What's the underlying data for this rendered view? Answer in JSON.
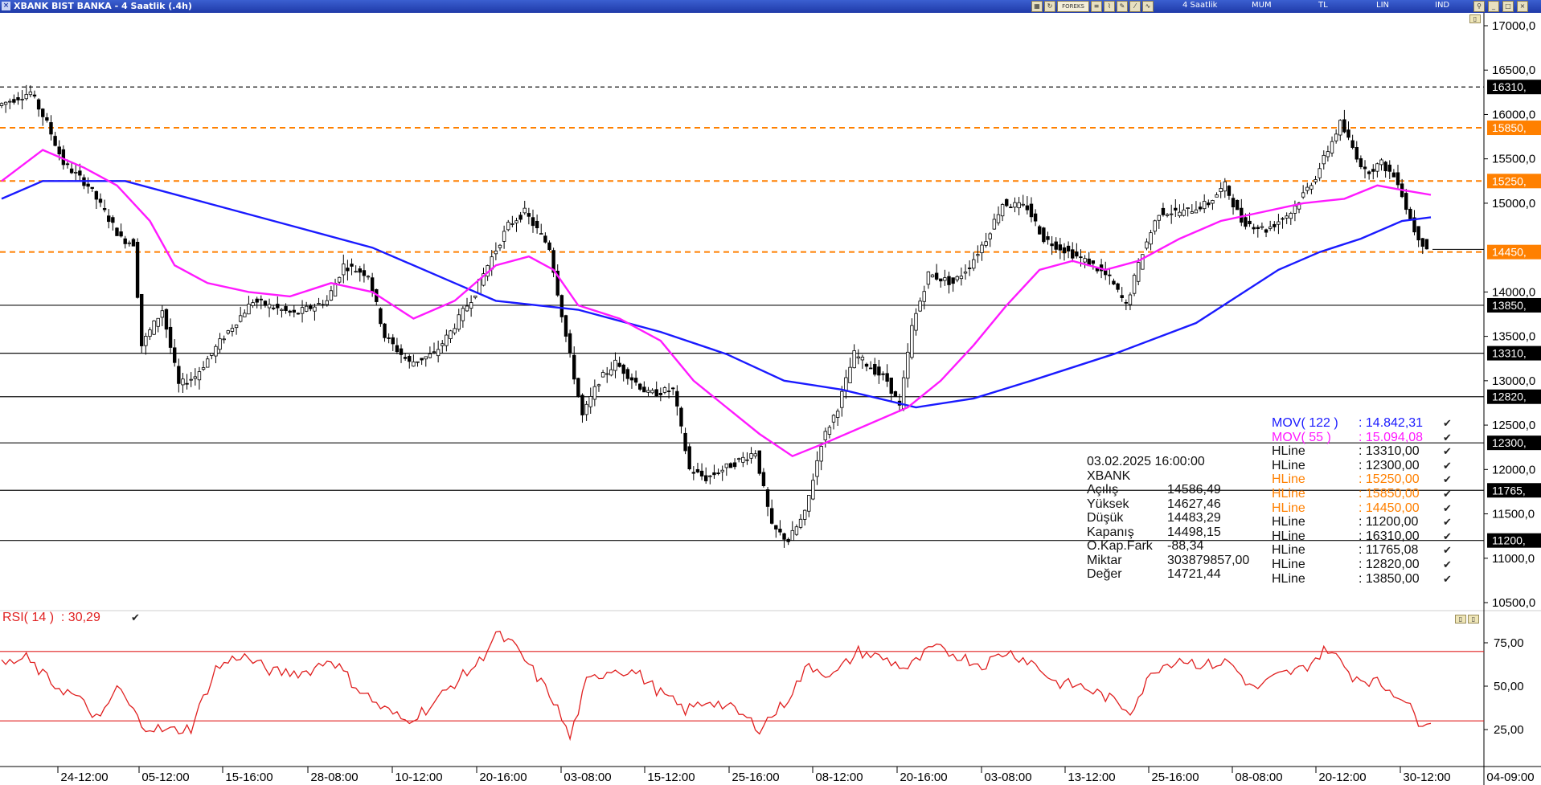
{
  "window": {
    "title": "XBANK BIST BANKA - 4 Saatlik (.4h)",
    "toolbar": {
      "forex_label": "FOREKS",
      "period": "4 Saatlik",
      "style": "MUM",
      "currency": "TL",
      "scale": "LIN",
      "indicator": "IND"
    }
  },
  "info": {
    "datetime": "03.02.2025  16:00:00",
    "symbol": "XBANK",
    "rows": [
      {
        "label": "Açılış",
        "value": "14586,49"
      },
      {
        "label": "Yüksek",
        "value": "14627,46"
      },
      {
        "label": "Düşük",
        "value": "14483,29"
      },
      {
        "label": "Kapanış",
        "value": "14498,15"
      },
      {
        "label": "O.Kap.Fark",
        "value": "-88,34"
      },
      {
        "label": "Miktar",
        "value": "303879857,00"
      },
      {
        "label": "Değer",
        "value": "14721,44"
      }
    ]
  },
  "indicators": [
    {
      "name": "MOV( 122 )",
      "value": ": 14.842,31",
      "color": "#1a1aff"
    },
    {
      "name": "MOV( 55 )",
      "value": ": 15.094,08",
      "color": "#ff1aff"
    },
    {
      "name": "HLine",
      "value": ": 13310,00",
      "color": "#111111"
    },
    {
      "name": "HLine",
      "value": ": 12300,00",
      "color": "#111111"
    },
    {
      "name": "HLine",
      "value": ": 15250,00",
      "color": "#ff8000"
    },
    {
      "name": "HLine",
      "value": ": 15850,00",
      "color": "#ff8000"
    },
    {
      "name": "HLine",
      "value": ": 14450,00",
      "color": "#ff8000"
    },
    {
      "name": "HLine",
      "value": ": 11200,00",
      "color": "#111111"
    },
    {
      "name": "HLine",
      "value": ": 16310,00",
      "color": "#111111"
    },
    {
      "name": "HLine",
      "value": ": 11765,08",
      "color": "#111111"
    },
    {
      "name": "HLine",
      "value": ": 12820,00",
      "color": "#111111"
    },
    {
      "name": "HLine",
      "value": ": 13850,00",
      "color": "#111111"
    }
  ],
  "rsi": {
    "label": "RSI( 14 )",
    "value": ": 30,29"
  },
  "chart_data": {
    "type": "candlestick",
    "price_ticks": [
      "17000,0",
      "16500,0",
      "16000,0",
      "15500,0",
      "15000,0",
      "14000,0",
      "13500,0",
      "13000,0",
      "12500,0",
      "12000,0",
      "11500,0",
      "11000,0",
      "10500,0"
    ],
    "ylim": [
      10300,
      17100
    ],
    "hlines": [
      {
        "value": 16310,
        "label": "16310,",
        "style": "dashed",
        "color": "#111111"
      },
      {
        "value": 15850,
        "label": "15850,",
        "style": "dashed",
        "color": "#ff8000"
      },
      {
        "value": 15250,
        "label": "15250,",
        "style": "dashed",
        "color": "#ff8000"
      },
      {
        "value": 14450,
        "label": "14450,",
        "style": "dashed",
        "color": "#ff8000"
      },
      {
        "value": 13850,
        "label": "13850,",
        "style": "solid",
        "color": "#111111"
      },
      {
        "value": 13310,
        "label": "13310,",
        "style": "solid",
        "color": "#111111"
      },
      {
        "value": 12820,
        "label": "12820,",
        "style": "solid",
        "color": "#111111"
      },
      {
        "value": 12300,
        "label": "12300,",
        "style": "solid",
        "color": "#111111"
      },
      {
        "value": 11765,
        "label": "11765,",
        "style": "solid",
        "color": "#111111"
      },
      {
        "value": 11200,
        "label": "11200,",
        "style": "solid",
        "color": "#111111"
      }
    ],
    "time_ticks": [
      "24-12:00",
      "05-12:00",
      "15-16:00",
      "28-08:00",
      "10-12:00",
      "20-16:00",
      "03-08:00",
      "15-12:00",
      "25-16:00",
      "08-12:00",
      "20-16:00",
      "03-08:00",
      "13-12:00",
      "25-16:00",
      "08-08:00",
      "20-12:00",
      "30-12:00",
      "04-09:00"
    ],
    "n_bars": 360,
    "close_path": [
      [
        0,
        16100
      ],
      [
        8,
        16250
      ],
      [
        12,
        15900
      ],
      [
        16,
        15450
      ],
      [
        22,
        15200
      ],
      [
        30,
        14600
      ],
      [
        33,
        14550
      ],
      [
        35,
        13400
      ],
      [
        40,
        13800
      ],
      [
        44,
        12950
      ],
      [
        48,
        13050
      ],
      [
        55,
        13500
      ],
      [
        62,
        13900
      ],
      [
        72,
        13750
      ],
      [
        80,
        13900
      ],
      [
        84,
        14300
      ],
      [
        90,
        14200
      ],
      [
        94,
        13500
      ],
      [
        100,
        13200
      ],
      [
        106,
        13300
      ],
      [
        110,
        13550
      ],
      [
        116,
        14000
      ],
      [
        119,
        14300
      ],
      [
        124,
        14750
      ],
      [
        128,
        14900
      ],
      [
        134,
        14500
      ],
      [
        138,
        13500
      ],
      [
        142,
        12600
      ],
      [
        146,
        13000
      ],
      [
        150,
        13200
      ],
      [
        158,
        12850
      ],
      [
        164,
        12900
      ],
      [
        168,
        12000
      ],
      [
        172,
        11900
      ],
      [
        178,
        12050
      ],
      [
        184,
        12200
      ],
      [
        188,
        11350
      ],
      [
        192,
        11200
      ],
      [
        196,
        11500
      ],
      [
        200,
        12300
      ],
      [
        204,
        12700
      ],
      [
        208,
        13300
      ],
      [
        216,
        13000
      ],
      [
        219,
        12700
      ],
      [
        222,
        13600
      ],
      [
        226,
        14200
      ],
      [
        232,
        14100
      ],
      [
        236,
        14300
      ],
      [
        240,
        14600
      ],
      [
        244,
        15000
      ],
      [
        250,
        14950
      ],
      [
        254,
        14600
      ],
      [
        258,
        14500
      ],
      [
        262,
        14400
      ],
      [
        266,
        14300
      ],
      [
        270,
        14150
      ],
      [
        274,
        13850
      ],
      [
        278,
        14450
      ],
      [
        282,
        14900
      ],
      [
        288,
        14900
      ],
      [
        294,
        15000
      ],
      [
        298,
        15200
      ],
      [
        302,
        14800
      ],
      [
        308,
        14700
      ],
      [
        314,
        14900
      ],
      [
        320,
        15300
      ],
      [
        326,
        15900
      ],
      [
        332,
        15350
      ],
      [
        336,
        15450
      ],
      [
        340,
        15250
      ],
      [
        342,
        14950
      ],
      [
        344,
        14700
      ],
      [
        346,
        14550
      ],
      [
        347,
        14500
      ]
    ],
    "ma55_path": [
      [
        0,
        15250
      ],
      [
        10,
        15600
      ],
      [
        20,
        15400
      ],
      [
        28,
        15200
      ],
      [
        36,
        14800
      ],
      [
        42,
        14300
      ],
      [
        50,
        14100
      ],
      [
        60,
        14000
      ],
      [
        70,
        13950
      ],
      [
        80,
        14100
      ],
      [
        90,
        14000
      ],
      [
        100,
        13700
      ],
      [
        110,
        13900
      ],
      [
        120,
        14300
      ],
      [
        128,
        14400
      ],
      [
        134,
        14250
      ],
      [
        140,
        13850
      ],
      [
        150,
        13700
      ],
      [
        160,
        13450
      ],
      [
        168,
        13000
      ],
      [
        176,
        12700
      ],
      [
        184,
        12400
      ],
      [
        192,
        12150
      ],
      [
        200,
        12300
      ],
      [
        210,
        12500
      ],
      [
        220,
        12700
      ],
      [
        228,
        13000
      ],
      [
        236,
        13400
      ],
      [
        244,
        13850
      ],
      [
        252,
        14250
      ],
      [
        260,
        14350
      ],
      [
        268,
        14250
      ],
      [
        276,
        14350
      ],
      [
        286,
        14600
      ],
      [
        296,
        14800
      ],
      [
        306,
        14900
      ],
      [
        316,
        15000
      ],
      [
        326,
        15050
      ],
      [
        334,
        15200
      ],
      [
        340,
        15150
      ],
      [
        347,
        15094
      ]
    ],
    "ma122_path": [
      [
        0,
        15050
      ],
      [
        10,
        15250
      ],
      [
        30,
        15250
      ],
      [
        50,
        15000
      ],
      [
        70,
        14750
      ],
      [
        90,
        14500
      ],
      [
        110,
        14100
      ],
      [
        120,
        13900
      ],
      [
        140,
        13800
      ],
      [
        160,
        13550
      ],
      [
        176,
        13300
      ],
      [
        190,
        13000
      ],
      [
        204,
        12900
      ],
      [
        222,
        12700
      ],
      [
        236,
        12800
      ],
      [
        250,
        13000
      ],
      [
        270,
        13300
      ],
      [
        290,
        13650
      ],
      [
        300,
        13950
      ],
      [
        310,
        14250
      ],
      [
        320,
        14450
      ],
      [
        330,
        14600
      ],
      [
        340,
        14800
      ],
      [
        347,
        14842
      ]
    ],
    "rsi_levels": [
      70,
      30
    ],
    "rsi_ticks": [
      "75,00",
      "50,00",
      "25,00"
    ],
    "rsi_path": [
      [
        0,
        62
      ],
      [
        6,
        66
      ],
      [
        12,
        52
      ],
      [
        18,
        44
      ],
      [
        24,
        30
      ],
      [
        28,
        50
      ],
      [
        34,
        28
      ],
      [
        40,
        24
      ],
      [
        46,
        26
      ],
      [
        52,
        60
      ],
      [
        58,
        68
      ],
      [
        66,
        58
      ],
      [
        74,
        58
      ],
      [
        80,
        66
      ],
      [
        86,
        50
      ],
      [
        92,
        38
      ],
      [
        98,
        30
      ],
      [
        104,
        38
      ],
      [
        110,
        52
      ],
      [
        116,
        64
      ],
      [
        120,
        80
      ],
      [
        124,
        74
      ],
      [
        128,
        62
      ],
      [
        134,
        42
      ],
      [
        138,
        20
      ],
      [
        142,
        52
      ],
      [
        148,
        60
      ],
      [
        154,
        58
      ],
      [
        160,
        46
      ],
      [
        166,
        36
      ],
      [
        172,
        42
      ],
      [
        178,
        36
      ],
      [
        184,
        26
      ],
      [
        190,
        40
      ],
      [
        196,
        62
      ],
      [
        202,
        56
      ],
      [
        208,
        70
      ],
      [
        214,
        66
      ],
      [
        220,
        60
      ],
      [
        226,
        72
      ],
      [
        232,
        68
      ],
      [
        238,
        62
      ],
      [
        244,
        70
      ],
      [
        250,
        64
      ],
      [
        256,
        52
      ],
      [
        262,
        50
      ],
      [
        268,
        44
      ],
      [
        274,
        36
      ],
      [
        280,
        60
      ],
      [
        286,
        66
      ],
      [
        292,
        62
      ],
      [
        298,
        64
      ],
      [
        304,
        48
      ],
      [
        310,
        56
      ],
      [
        316,
        60
      ],
      [
        322,
        72
      ],
      [
        328,
        56
      ],
      [
        334,
        52
      ],
      [
        340,
        44
      ],
      [
        344,
        30
      ],
      [
        347,
        31
      ]
    ]
  }
}
